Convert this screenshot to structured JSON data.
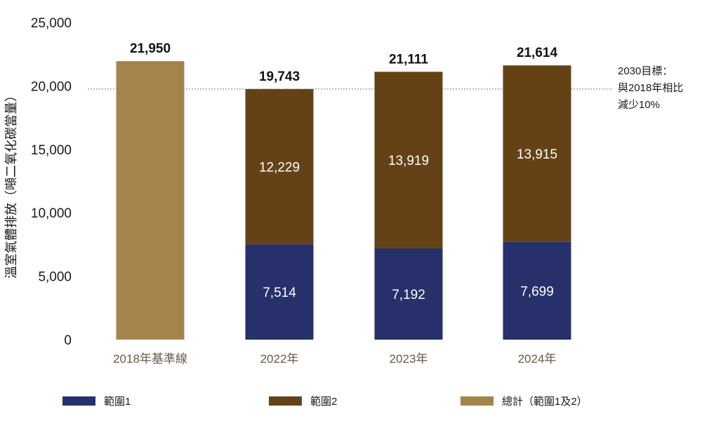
{
  "chart_data": {
    "type": "bar",
    "stacked": true,
    "categories": [
      "2018年基準線",
      "2022年",
      "2023年",
      "2024年"
    ],
    "series": [
      {
        "name": "範圍1",
        "color": "#27306b",
        "values": [
          null,
          7514,
          7192,
          7699
        ],
        "labels": [
          "",
          "7,514",
          "7,192",
          "7,699"
        ]
      },
      {
        "name": "範圍2",
        "color": "#654216",
        "values": [
          null,
          12229,
          13919,
          13915
        ],
        "labels": [
          "",
          "12,229",
          "13,919",
          "13,915"
        ]
      },
      {
        "name": "總計（範圍1及2）",
        "color": "#a5844b",
        "values": [
          21950,
          null,
          null,
          null
        ],
        "labels": [
          "",
          "",
          "",
          ""
        ]
      }
    ],
    "totals": [
      21950,
      19743,
      21111,
      21614
    ],
    "total_labels": [
      "21,950",
      "19,743",
      "21,111",
      "21,614"
    ],
    "ylabel": "溫室氣體排放（噸二氧化碳當量）",
    "ylim": [
      0,
      25000
    ],
    "yticks": [
      0,
      5000,
      10000,
      15000,
      20000,
      25000
    ],
    "ytick_labels": [
      "0",
      "5,000",
      "10,000",
      "15,000",
      "20,000",
      "25,000"
    ],
    "target": {
      "value": 19755,
      "lines": [
        "2030目標：",
        "與2018年相比",
        "減少10%"
      ]
    },
    "legend_position": "bottom"
  }
}
